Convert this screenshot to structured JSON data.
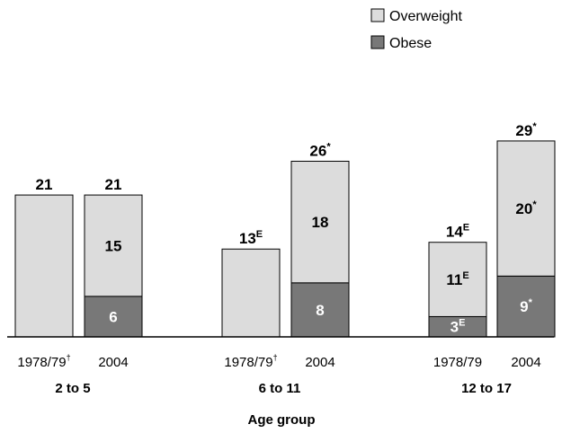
{
  "chart_data": {
    "type": "bar",
    "stacked": true,
    "xlabel": "Age group",
    "ylabel": "",
    "ylim": [
      0,
      30
    ],
    "grid": false,
    "legend_position": "top-right",
    "colors": {
      "Overweight": "#dcdcdc",
      "Obese": "#787878"
    },
    "legend": [
      {
        "name": "Overweight",
        "color": "#dcdcdc"
      },
      {
        "name": "Obese",
        "color": "#787878"
      }
    ],
    "groups": [
      {
        "label": "2 to 5",
        "bars": [
          {
            "period": "1978/79",
            "period_sup": "†",
            "total": 21,
            "total_label": "21",
            "total_sup": "",
            "overweight": 21,
            "obese": null,
            "overweight_label": "",
            "overweight_sup": "",
            "obese_label": "",
            "obese_sup": ""
          },
          {
            "period": "2004",
            "period_sup": "",
            "total": 21,
            "total_label": "21",
            "total_sup": "",
            "overweight": 15,
            "obese": 6,
            "overweight_label": "15",
            "overweight_sup": "",
            "obese_label": "6",
            "obese_sup": ""
          }
        ]
      },
      {
        "label": "6 to 11",
        "bars": [
          {
            "period": "1978/79",
            "period_sup": "†",
            "total": 13,
            "total_label": "13",
            "total_sup": "E",
            "overweight": 13,
            "obese": null,
            "overweight_label": "",
            "overweight_sup": "",
            "obese_label": "",
            "obese_sup": ""
          },
          {
            "period": "2004",
            "period_sup": "",
            "total": 26,
            "total_label": "26",
            "total_sup": "*",
            "overweight": 18,
            "obese": 8,
            "overweight_label": "18",
            "overweight_sup": "",
            "obese_label": "8",
            "obese_sup": ""
          }
        ]
      },
      {
        "label": "12 to 17",
        "bars": [
          {
            "period": "1978/79",
            "period_sup": "",
            "total": 14,
            "total_label": "14",
            "total_sup": "E",
            "overweight": 11,
            "obese": 3,
            "overweight_label": "11",
            "overweight_sup": "E",
            "obese_label": "3",
            "obese_sup": "E"
          },
          {
            "period": "2004",
            "period_sup": "",
            "total": 29,
            "total_label": "29",
            "total_sup": "*",
            "overweight": 20,
            "obese": 9,
            "overweight_label": "20",
            "overweight_sup": "*",
            "obese_label": "9",
            "obese_sup": "*"
          }
        ]
      }
    ]
  }
}
